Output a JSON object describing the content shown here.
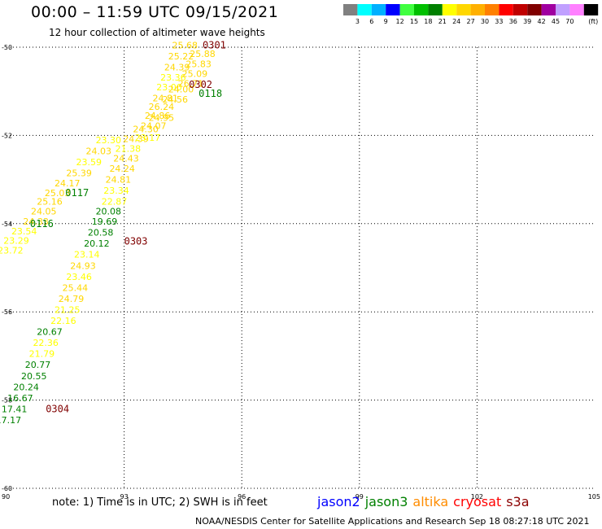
{
  "header": {
    "title": "00:00 – 11:59 UTC 09/15/2021",
    "subtitle": "12 hour collection of altimeter wave heights"
  },
  "footer": {
    "note": "note: 1) Time is in UTC; 2) SWH is in feet",
    "credit": "NOAA/NESDIS Center for Satellite Applications and Research   Sep 18 08:27:18 UTC 2021"
  },
  "legend": {
    "items": [
      {
        "label": "jason2",
        "color": "#0000ff"
      },
      {
        "label": "jason3",
        "color": "#008000"
      },
      {
        "label": "altika",
        "color": "#ff8c00"
      },
      {
        "label": "cryosat",
        "color": "#ff0000"
      },
      {
        "label": "s3a",
        "color": "#8b0000"
      }
    ]
  },
  "colorbar": {
    "unit": "(ft)",
    "ticks": [
      "3",
      "6",
      "9",
      "12",
      "15",
      "18",
      "21",
      "24",
      "27",
      "30",
      "33",
      "36",
      "39",
      "42",
      "45",
      "70"
    ],
    "colors": [
      "#808080",
      "#00ffff",
      "#00b0ff",
      "#0000ff",
      "#40ff40",
      "#00c000",
      "#008000",
      "#ffff00",
      "#ffd700",
      "#ffb000",
      "#ff8000",
      "#ff0000",
      "#c00000",
      "#800000",
      "#a000a0",
      "#c0a0ff",
      "#ff80ff",
      "#000000"
    ]
  },
  "chart_data": {
    "type": "scatter",
    "title": "00:00 – 11:59 UTC 09/15/2021",
    "xlim": [
      90,
      105
    ],
    "ylim": [
      -60,
      -50
    ],
    "x_ticks": [
      "90",
      "93",
      "96",
      "99",
      "102",
      "105"
    ],
    "y_ticks": [
      "-50",
      "-52",
      "-54",
      "-56",
      "-58",
      "-60"
    ],
    "grid": true,
    "passes": [
      {
        "label": "0301",
        "x": 95.3,
        "y": -49.95,
        "color": "#800000"
      },
      {
        "label": "0302",
        "x": 94.95,
        "y": -50.85,
        "color": "#800000"
      },
      {
        "label": "0118",
        "x": 95.2,
        "y": -51.05,
        "color": "#008000"
      },
      {
        "label": "0117",
        "x": 91.8,
        "y": -53.3,
        "color": "#008000"
      },
      {
        "label": "0116",
        "x": 90.9,
        "y": -54.0,
        "color": "#008000"
      },
      {
        "label": "0303",
        "x": 93.3,
        "y": -54.4,
        "color": "#800000"
      },
      {
        "label": "0304",
        "x": 91.3,
        "y": -58.2,
        "color": "#800000"
      }
    ],
    "points": [
      {
        "x": 94.55,
        "y": -49.95,
        "v": "25.68"
      },
      {
        "x": 94.45,
        "y": -50.2,
        "v": "25.22"
      },
      {
        "x": 94.35,
        "y": -50.45,
        "v": "24.39"
      },
      {
        "x": 94.25,
        "y": -50.68,
        "v": "23.36"
      },
      {
        "x": 94.15,
        "y": -50.9,
        "v": "23.00"
      },
      {
        "x": 94.05,
        "y": -51.15,
        "v": "24.81"
      },
      {
        "x": 93.95,
        "y": -51.35,
        "v": "26.24"
      },
      {
        "x": 93.85,
        "y": -51.55,
        "v": "24.86"
      },
      {
        "x": 93.75,
        "y": -51.78,
        "v": "24.07"
      },
      {
        "x": 93.55,
        "y": -51.85,
        "v": "24.30"
      },
      {
        "x": 93.3,
        "y": -52.08,
        "v": "24.39"
      },
      {
        "x": 93.1,
        "y": -52.3,
        "v": "21.38"
      },
      {
        "x": 93.05,
        "y": -52.52,
        "v": "24.43"
      },
      {
        "x": 92.95,
        "y": -52.75,
        "v": "24.24"
      },
      {
        "x": 92.85,
        "y": -53.0,
        "v": "24.81"
      },
      {
        "x": 92.8,
        "y": -53.25,
        "v": "23.34"
      },
      {
        "x": 92.75,
        "y": -53.5,
        "v": "22.87"
      },
      {
        "x": 92.6,
        "y": -53.72,
        "v": "20.08"
      },
      {
        "x": 92.5,
        "y": -53.95,
        "v": "19.69"
      },
      {
        "x": 92.4,
        "y": -54.2,
        "v": "20.58"
      },
      {
        "x": 92.3,
        "y": -54.45,
        "v": "20.12"
      },
      {
        "x": 92.05,
        "y": -54.7,
        "v": "23.14"
      },
      {
        "x": 91.95,
        "y": -54.95,
        "v": "24.93"
      },
      {
        "x": 91.85,
        "y": -55.2,
        "v": "23.46"
      },
      {
        "x": 91.75,
        "y": -55.45,
        "v": "25.44"
      },
      {
        "x": 91.65,
        "y": -55.7,
        "v": "24.79"
      },
      {
        "x": 91.55,
        "y": -55.95,
        "v": "21.25"
      },
      {
        "x": 91.45,
        "y": -56.2,
        "v": "22.16"
      },
      {
        "x": 91.1,
        "y": -56.45,
        "v": "20.67"
      },
      {
        "x": 91.0,
        "y": -56.7,
        "v": "22.36"
      },
      {
        "x": 90.9,
        "y": -56.95,
        "v": "21.79"
      },
      {
        "x": 90.8,
        "y": -57.2,
        "v": "20.77"
      },
      {
        "x": 90.7,
        "y": -57.45,
        "v": "20.55"
      },
      {
        "x": 90.5,
        "y": -57.7,
        "v": "20.24"
      },
      {
        "x": 90.35,
        "y": -57.95,
        "v": "16.67"
      },
      {
        "x": 90.2,
        "y": -58.2,
        "v": "17.41"
      },
      {
        "x": 90.05,
        "y": -58.45,
        "v": "17.17"
      },
      {
        "x": 92.6,
        "y": -52.1,
        "v": "23.30"
      },
      {
        "x": 92.35,
        "y": -52.35,
        "v": "24.03"
      },
      {
        "x": 92.1,
        "y": -52.6,
        "v": "23.59"
      },
      {
        "x": 91.85,
        "y": -52.85,
        "v": "25.39"
      },
      {
        "x": 91.55,
        "y": -53.08,
        "v": "24.17"
      },
      {
        "x": 91.3,
        "y": -53.3,
        "v": "25.03"
      },
      {
        "x": 91.1,
        "y": -53.5,
        "v": "25.16"
      },
      {
        "x": 90.95,
        "y": -53.72,
        "v": "24.05"
      },
      {
        "x": 90.75,
        "y": -53.95,
        "v": "24.33"
      },
      {
        "x": 90.45,
        "y": -54.17,
        "v": "23.54"
      },
      {
        "x": 90.25,
        "y": -54.38,
        "v": "23.29"
      },
      {
        "x": 90.1,
        "y": -54.6,
        "v": "23.72"
      },
      {
        "x": 95.0,
        "y": -50.15,
        "v": "25.88"
      },
      {
        "x": 94.9,
        "y": -50.38,
        "v": "25.83"
      },
      {
        "x": 94.8,
        "y": -50.6,
        "v": "25.09"
      },
      {
        "x": 94.7,
        "y": -50.82,
        "v": "26.71"
      },
      {
        "x": 94.45,
        "y": -50.95,
        "v": "24.00"
      },
      {
        "x": 94.3,
        "y": -51.18,
        "v": "24.56"
      },
      {
        "x": 93.95,
        "y": -51.6,
        "v": "24.95"
      },
      {
        "x": 93.6,
        "y": -52.05,
        "v": "23.17"
      }
    ]
  }
}
